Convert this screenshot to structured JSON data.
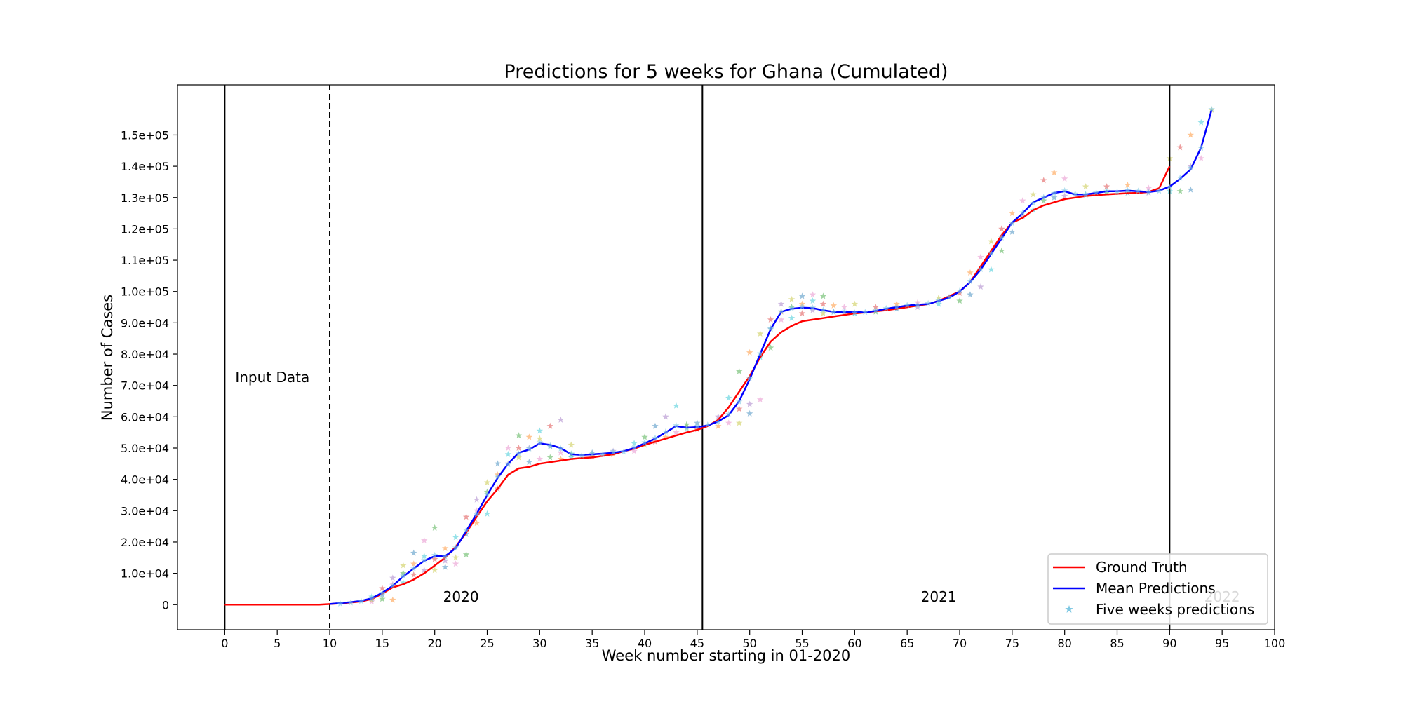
{
  "chart_data": {
    "type": "line",
    "title": "Predictions for 5 weeks for Ghana (Cumulated)",
    "xlabel": "Week number starting in 01-2020",
    "ylabel": "Number of Cases",
    "xlim": [
      -4.5,
      100
    ],
    "ylim": [
      -8000,
      166000
    ],
    "x_ticks": [
      0,
      5,
      10,
      15,
      20,
      25,
      30,
      35,
      40,
      45,
      50,
      55,
      60,
      65,
      70,
      75,
      80,
      85,
      90,
      95,
      100
    ],
    "x_tick_labels": [
      "0",
      "5",
      "10",
      "15",
      "20",
      "25",
      "30",
      "35",
      "40",
      "45",
      "50",
      "55",
      "60",
      "65",
      "70",
      "75",
      "80",
      "85",
      "90",
      "95",
      "100"
    ],
    "y_ticks": [
      0,
      10000,
      20000,
      30000,
      40000,
      50000,
      60000,
      70000,
      80000,
      90000,
      100000,
      110000,
      120000,
      130000,
      140000,
      150000
    ],
    "y_tick_labels": [
      "0",
      "1.0e+04",
      "2.0e+04",
      "3.0e+04",
      "4.0e+04",
      "5.0e+04",
      "6.0e+04",
      "7.0e+04",
      "8.0e+04",
      "9.0e+04",
      "1.0e+05",
      "1.1e+05",
      "1.2e+05",
      "1.3e+05",
      "1.4e+05",
      "1.5e+05"
    ],
    "grid": false,
    "legend_position": "bottom-right",
    "vertical_lines": [
      {
        "x": 0,
        "style": "solid"
      },
      {
        "x": 10,
        "style": "dashed"
      },
      {
        "x": 45.5,
        "style": "solid"
      },
      {
        "x": 90,
        "style": "solid"
      }
    ],
    "annotations": [
      {
        "text": "Input Data",
        "x": 1,
        "y": 71000,
        "color": "#000000"
      },
      {
        "text": "2020",
        "x": 20.8,
        "y": 1000,
        "color": "#000000"
      },
      {
        "text": "2021",
        "x": 66.3,
        "y": 1000,
        "color": "#000000"
      },
      {
        "text": "2022",
        "x": 93.3,
        "y": 1000,
        "color": "#bbbbbb"
      }
    ],
    "series": [
      {
        "name": "Ground Truth",
        "color": "#ff0000",
        "x": [
          0,
          9,
          10,
          11,
          12,
          13,
          14,
          15,
          16,
          17,
          18,
          19,
          20,
          21,
          22,
          23,
          24,
          25,
          26,
          27,
          28,
          29,
          30,
          31,
          32,
          33,
          34,
          35,
          36,
          37,
          38,
          39,
          40,
          41,
          42,
          43,
          44,
          45,
          46,
          47,
          48,
          49,
          50,
          51,
          52,
          53,
          54,
          55,
          56,
          57,
          58,
          59,
          60,
          61,
          62,
          63,
          64,
          65,
          66,
          67,
          68,
          69,
          70,
          71,
          72,
          73,
          74,
          75,
          76,
          77,
          78,
          79,
          80,
          81,
          82,
          83,
          84,
          85,
          86,
          87,
          88,
          89,
          90
        ],
        "values": [
          0,
          0,
          200,
          400,
          700,
          1000,
          1800,
          3500,
          5500,
          6500,
          8000,
          10000,
          12500,
          15000,
          18500,
          23000,
          28000,
          33000,
          37000,
          41500,
          43500,
          44000,
          45000,
          45500,
          46000,
          46500,
          46800,
          47000,
          47500,
          48000,
          49000,
          49800,
          51000,
          52000,
          53000,
          54000,
          55000,
          55800,
          57000,
          59000,
          63000,
          68000,
          73000,
          79000,
          84000,
          87000,
          89000,
          90500,
          91000,
          91500,
          92000,
          92500,
          93000,
          93300,
          93700,
          94000,
          94500,
          95000,
          95500,
          96000,
          97000,
          98500,
          100000,
          103000,
          108000,
          113000,
          118000,
          122000,
          123500,
          126000,
          127500,
          128500,
          129500,
          130000,
          130500,
          130800,
          131000,
          131200,
          131400,
          131500,
          131800,
          133000,
          140000
        ]
      },
      {
        "name": "Mean Predictions",
        "color": "#0000ff",
        "x": [
          10,
          11,
          12,
          13,
          14,
          15,
          16,
          17,
          18,
          19,
          20,
          21,
          22,
          23,
          24,
          25,
          26,
          27,
          28,
          29,
          30,
          31,
          32,
          33,
          34,
          35,
          36,
          37,
          38,
          39,
          40,
          41,
          42,
          43,
          44,
          45,
          46,
          47,
          48,
          49,
          50,
          51,
          52,
          53,
          54,
          55,
          56,
          57,
          58,
          59,
          60,
          61,
          62,
          63,
          64,
          65,
          66,
          67,
          68,
          69,
          70,
          71,
          72,
          73,
          74,
          75,
          76,
          77,
          78,
          79,
          80,
          81,
          82,
          83,
          84,
          85,
          86,
          87,
          88,
          89,
          90,
          91,
          92,
          93,
          94
        ],
        "values": [
          200,
          500,
          800,
          1200,
          2000,
          3800,
          6000,
          9000,
          11500,
          14000,
          15500,
          15500,
          18000,
          23500,
          29000,
          35000,
          40500,
          45000,
          48500,
          49500,
          51500,
          51000,
          50000,
          48000,
          47800,
          48000,
          48200,
          48500,
          49000,
          50000,
          51500,
          53000,
          55000,
          57000,
          56500,
          56700,
          57200,
          58500,
          60500,
          65000,
          72000,
          80000,
          88000,
          93500,
          94500,
          94800,
          94700,
          94000,
          93500,
          93500,
          93500,
          93300,
          93800,
          94500,
          95000,
          95500,
          95800,
          96000,
          97000,
          98000,
          100000,
          103000,
          107000,
          112000,
          117000,
          122000,
          125000,
          128500,
          130000,
          131500,
          132000,
          131000,
          131000,
          131500,
          132000,
          132000,
          132200,
          132000,
          131800,
          132200,
          133500,
          136000,
          139000,
          146000,
          158000
        ]
      },
      {
        "name": "Five weeks predictions",
        "color": "#7ec8e3",
        "x": [
          11,
          12,
          13,
          14,
          15,
          16,
          17,
          18,
          19,
          20,
          21,
          22,
          23,
          24,
          25,
          26,
          27,
          28,
          29,
          30,
          31,
          32,
          33,
          34,
          35,
          36,
          37,
          38,
          39,
          40,
          41,
          42,
          43,
          44,
          45,
          46,
          47,
          48,
          49,
          50,
          51,
          52,
          53,
          54,
          55,
          56,
          57,
          58,
          59,
          60,
          61,
          62,
          63,
          64,
          65,
          66,
          67,
          68,
          69,
          70,
          71,
          72,
          73,
          74,
          75,
          76,
          77,
          78,
          79,
          80,
          81,
          82,
          83,
          84,
          85,
          86,
          87,
          88,
          89,
          90,
          91,
          92,
          93,
          94
        ],
        "values": [
          300,
          600,
          1100,
          1900,
          3700,
          6100,
          9200,
          11500,
          14200,
          15800,
          15300,
          18200,
          23800,
          28800,
          35200,
          40800,
          44800,
          48200,
          49800,
          51800,
          50800,
          49800,
          48200,
          47600,
          48100,
          48000,
          48700,
          48800,
          50200,
          51800,
          53200,
          55200,
          57200,
          56200,
          57000,
          57400,
          58300,
          60800,
          64800,
          72200,
          80200,
          88200,
          93600,
          94600,
          95200,
          94800,
          94100,
          93400,
          93600,
          93200,
          93400,
          93900,
          94600,
          95100,
          95600,
          95700,
          96200,
          97100,
          98200,
          100200,
          103200,
          107100,
          112200,
          117200,
          121800,
          125200,
          128200,
          130100,
          131400,
          132200,
          131200,
          130800,
          131600,
          132100,
          131800,
          132300,
          132100,
          131700,
          132100,
          133200,
          136300,
          139500,
          145800,
          158200
        ]
      }
    ],
    "prediction_cloud": [
      {
        "x": 14,
        "values": [
          1000,
          2500,
          1600
        ]
      },
      {
        "x": 15,
        "values": [
          1800,
          5200,
          3200
        ]
      },
      {
        "x": 16,
        "values": [
          1500,
          8500,
          6500
        ]
      },
      {
        "x": 17,
        "values": [
          7000,
          12500,
          10000
        ]
      },
      {
        "x": 18,
        "values": [
          9500,
          16500,
          13000
        ]
      },
      {
        "x": 19,
        "values": [
          11000,
          20500,
          15500
        ]
      },
      {
        "x": 20,
        "values": [
          11000,
          24500,
          14500
        ]
      },
      {
        "x": 21,
        "values": [
          12000,
          18000,
          14000
        ]
      },
      {
        "x": 22,
        "values": [
          13000,
          21500,
          15000
        ]
      },
      {
        "x": 23,
        "values": [
          16000,
          28000,
          22500
        ]
      },
      {
        "x": 24,
        "values": [
          26000,
          33500,
          30000
        ]
      },
      {
        "x": 25,
        "values": [
          29000,
          39000,
          36000
        ]
      },
      {
        "x": 26,
        "values": [
          37000,
          45000,
          41500
        ]
      },
      {
        "x": 27,
        "values": [
          45000,
          50000,
          48000
        ]
      },
      {
        "x": 28,
        "values": [
          47000,
          54000,
          50000
        ]
      },
      {
        "x": 29,
        "values": [
          45500,
          53500,
          50000
        ]
      },
      {
        "x": 30,
        "values": [
          46500,
          55500,
          53000
        ]
      },
      {
        "x": 31,
        "values": [
          47000,
          57000,
          50500
        ]
      },
      {
        "x": 32,
        "values": [
          46500,
          59000,
          48500
        ]
      },
      {
        "x": 33,
        "values": [
          47000,
          51000,
          48000
        ]
      },
      {
        "x": 35,
        "values": [
          47500,
          48500
        ]
      },
      {
        "x": 37,
        "values": [
          48000,
          49000
        ]
      },
      {
        "x": 39,
        "values": [
          49000,
          51500
        ]
      },
      {
        "x": 40,
        "values": [
          51000,
          53500
        ]
      },
      {
        "x": 41,
        "values": [
          52000,
          57000
        ]
      },
      {
        "x": 42,
        "values": [
          53500,
          60000
        ]
      },
      {
        "x": 43,
        "values": [
          55000,
          63500
        ]
      },
      {
        "x": 44,
        "values": [
          56500,
          57500
        ]
      },
      {
        "x": 45,
        "values": [
          56000,
          58000
        ]
      },
      {
        "x": 47,
        "values": [
          57000,
          60000
        ]
      },
      {
        "x": 48,
        "values": [
          58000,
          66000
        ]
      },
      {
        "x": 49,
        "values": [
          58000,
          74500,
          62500
        ]
      },
      {
        "x": 50,
        "values": [
          61000,
          80500,
          64000
        ]
      },
      {
        "x": 51,
        "values": [
          65500,
          79000,
          86500
        ]
      },
      {
        "x": 52,
        "values": [
          82000,
          91000,
          88000
        ]
      },
      {
        "x": 53,
        "values": [
          93500,
          96000,
          91000
        ]
      },
      {
        "x": 54,
        "values": [
          91500,
          97500,
          95000
        ]
      },
      {
        "x": 55,
        "values": [
          93000,
          98500,
          96000
        ]
      },
      {
        "x": 56,
        "values": [
          94000,
          99000,
          97000
        ]
      },
      {
        "x": 57,
        "values": [
          93000,
          98500,
          96000
        ]
      },
      {
        "x": 58,
        "values": [
          93500,
          95500
        ]
      },
      {
        "x": 59,
        "values": [
          93000,
          95000
        ]
      },
      {
        "x": 60,
        "values": [
          93000,
          96000
        ]
      },
      {
        "x": 62,
        "values": [
          93500,
          95000
        ]
      },
      {
        "x": 64,
        "values": [
          94500,
          96000
        ]
      },
      {
        "x": 66,
        "values": [
          95000,
          96500
        ]
      },
      {
        "x": 68,
        "values": [
          96000,
          98000
        ]
      },
      {
        "x": 70,
        "values": [
          97000,
          99500
        ]
      },
      {
        "x": 71,
        "values": [
          99000,
          106000
        ]
      },
      {
        "x": 72,
        "values": [
          101500,
          111000
        ]
      },
      {
        "x": 73,
        "values": [
          107000,
          116000
        ]
      },
      {
        "x": 74,
        "values": [
          113000,
          120000
        ]
      },
      {
        "x": 75,
        "values": [
          119000,
          125000
        ]
      },
      {
        "x": 76,
        "values": [
          124000,
          129000
        ]
      },
      {
        "x": 77,
        "values": [
          126000,
          131000
        ]
      },
      {
        "x": 78,
        "values": [
          129000,
          135500
        ]
      },
      {
        "x": 79,
        "values": [
          130000,
          138000
        ]
      },
      {
        "x": 80,
        "values": [
          130500,
          136000
        ]
      },
      {
        "x": 82,
        "values": [
          131000,
          133500
        ]
      },
      {
        "x": 84,
        "values": [
          131500,
          133500
        ]
      },
      {
        "x": 86,
        "values": [
          131500,
          134000
        ]
      },
      {
        "x": 88,
        "values": [
          131500,
          133000
        ]
      },
      {
        "x": 90,
        "values": [
          132000,
          142500
        ]
      },
      {
        "x": 91,
        "values": [
          132000,
          146000
        ]
      },
      {
        "x": 92,
        "values": [
          132500,
          150000,
          140000
        ]
      },
      {
        "x": 93,
        "values": [
          142500,
          154000
        ]
      },
      {
        "x": 94,
        "values": [
          158000
        ]
      }
    ],
    "cloud_colors": [
      "#e377c2",
      "#17becf",
      "#bcbd22",
      "#2ca02c",
      "#d62728",
      "#1f77b4",
      "#ff7f0e",
      "#9467bd"
    ]
  }
}
